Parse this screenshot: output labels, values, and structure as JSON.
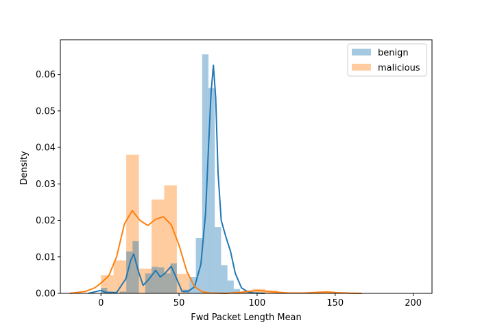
{
  "chart_data": {
    "type": "histogram_kde",
    "xlabel": "Fwd Packet Length Mean",
    "ylabel": "Density",
    "xlim": [
      -26,
      212
    ],
    "ylim": [
      0,
      0.0695
    ],
    "xticks": [
      0,
      50,
      100,
      150,
      200
    ],
    "yticks": [
      0.0,
      0.01,
      0.02,
      0.03,
      0.04,
      0.05,
      0.06
    ],
    "ytick_labels": [
      "0.00",
      "0.01",
      "0.02",
      "0.03",
      "0.04",
      "0.05",
      "0.06"
    ],
    "legend_position": "top-right",
    "series": [
      {
        "name": "benign",
        "color": "#1f77b4",
        "bin_edges": [
          0,
          4.05,
          8.1,
          12.15,
          16.2,
          20.25,
          24.3,
          28.35,
          32.4,
          36.45,
          40.5,
          44.55,
          48.6,
          52.65,
          56.7,
          60.75,
          64.8,
          68.85,
          72.9,
          76.95,
          81,
          85.05,
          89.1,
          93.15,
          97.2,
          101.25
        ],
        "values": [
          0.0015,
          0,
          0,
          0.0005,
          0.0115,
          0.0143,
          0,
          0.0055,
          0.0073,
          0.0071,
          0.0055,
          0.0082,
          0,
          0.001,
          0.0045,
          0.0152,
          0.0655,
          0.0563,
          0.0182,
          0.0077,
          0.0035,
          0.0012,
          0.0003,
          0.0008,
          0.0003
        ],
        "kde_x": [
          -8,
          0,
          3,
          10,
          16,
          19,
          21,
          24,
          27,
          31,
          35,
          38,
          41,
          45,
          48,
          52,
          56,
          60,
          64,
          67,
          69,
          70.5,
          72,
          73.5,
          75,
          77,
          80,
          83,
          86,
          90,
          94,
          98,
          105
        ],
        "kde_y": [
          0,
          0.0008,
          0.0003,
          0.0002,
          0.004,
          0.009,
          0.0108,
          0.006,
          0.0022,
          0.004,
          0.0063,
          0.0045,
          0.0055,
          0.0074,
          0.0045,
          0.0005,
          0.0006,
          0.0018,
          0.008,
          0.022,
          0.041,
          0.055,
          0.0625,
          0.0535,
          0.033,
          0.02,
          0.0155,
          0.0115,
          0.0055,
          0.0015,
          0.0004,
          0.0001,
          0
        ]
      },
      {
        "name": "malicious",
        "color": "#ff7f0e",
        "bin_edges": [
          0,
          8.1,
          16.2,
          24.3,
          32.4,
          40.5,
          48.6,
          56.7,
          64.8,
          72.9,
          81,
          89.1,
          97.2,
          105.3,
          113.4,
          121.5,
          129.6,
          137.7,
          145.8,
          153.9
        ],
        "values": [
          0.005,
          0.009,
          0.038,
          0.0068,
          0.0257,
          0.0296,
          0.0053,
          0,
          0,
          0,
          0,
          0.0003,
          0.0012,
          0.0008,
          0,
          0,
          0,
          0.0005,
          0.0003
        ],
        "kde_x": [
          -20,
          -10,
          -4,
          0,
          5,
          10,
          15,
          20,
          25,
          30,
          35,
          40,
          45,
          50,
          55,
          60,
          65,
          70,
          80,
          90,
          100,
          110,
          120,
          130,
          140,
          145,
          150,
          160,
          167
        ],
        "kde_y": [
          0,
          0.0005,
          0.0015,
          0.0028,
          0.0048,
          0.01,
          0.019,
          0.0227,
          0.02,
          0.0186,
          0.0203,
          0.021,
          0.0188,
          0.0132,
          0.006,
          0.0018,
          0.0004,
          0.0001,
          0,
          0.0003,
          0.0008,
          0.0004,
          0.0001,
          0.0001,
          0.0003,
          0.0004,
          0.0002,
          5e-05,
          0
        ]
      }
    ]
  }
}
